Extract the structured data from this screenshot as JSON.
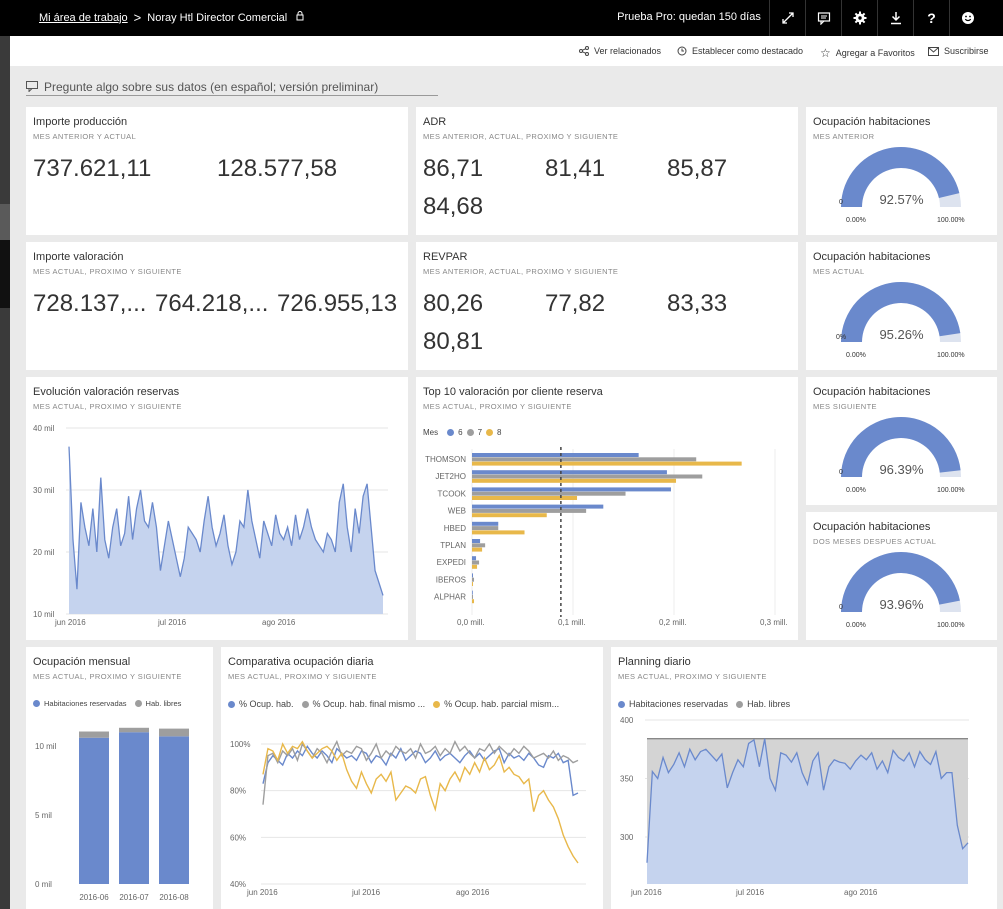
{
  "topbar": {
    "workspace": "Mi área de trabajo",
    "separator": ">",
    "dashboard": "Noray Htl Director Comercial",
    "trial": "Prueba Pro: quedan 150 días",
    "icons": [
      "expand-icon",
      "comment-icon",
      "gear-icon",
      "download-icon",
      "help-icon",
      "smiley-icon"
    ]
  },
  "actions": {
    "related": "Ver relacionados",
    "featured": "Establecer como destacado",
    "favorites": "Agregar a Favoritos",
    "subscribe": "Suscribirse"
  },
  "qa": {
    "placeholder": "Pregunte algo sobre sus datos (en español; versión preliminar)"
  },
  "colors": {
    "blue": "#6a89cc",
    "gray": "#9e9e9e",
    "yellow": "#e8b84a",
    "area": "#c5d3ee",
    "gauge_bg": "#dde3ef"
  },
  "tiles": {
    "produccion": {
      "title": "Importe producción",
      "subtitle": "MES ANTERIOR Y ACTUAL",
      "values": [
        "737.621,11",
        "128.577,58"
      ]
    },
    "adr": {
      "title": "ADR",
      "subtitle": "MES ANTERIOR, ACTUAL, PROXIMO Y SIGUIENTE",
      "values": [
        "86,71",
        "81,41",
        "85,87",
        "84,68"
      ]
    },
    "valoracion": {
      "title": "Importe valoración",
      "subtitle": "MES ACTUAL, PROXIMO Y SIGUIENTE",
      "values": [
        "728.137,...",
        "764.218,...",
        "726.955,13"
      ]
    },
    "revpar": {
      "title": "REVPAR",
      "subtitle": "MES ANTERIOR, ACTUAL, PROXIMO Y SIGUIENTE",
      "values": [
        "80,26",
        "77,82",
        "83,33",
        "80,81"
      ]
    },
    "gauges": [
      {
        "title": "Ocupación habitaciones",
        "subtitle": "MES ANTERIOR",
        "value": 0.9257,
        "label": "92.57%",
        "min": "0.00%",
        "max": "100.00%",
        "zero": "0"
      },
      {
        "title": "Ocupación habitaciones",
        "subtitle": "MES ACTUAL",
        "value": 0.9526,
        "label": "95.26%",
        "min": "0.00%",
        "max": "100.00%",
        "zero": "0%"
      },
      {
        "title": "Ocupación habitaciones",
        "subtitle": "MES SIGUIENTE",
        "value": 0.9639,
        "label": "96.39%",
        "min": "0.00%",
        "max": "100.00%",
        "zero": "0"
      },
      {
        "title": "Ocupación habitaciones",
        "subtitle": "DOS MESES DESPUES ACTUAL",
        "value": 0.9396,
        "label": "93.96%",
        "min": "0.00%",
        "max": "100.00%",
        "zero": "0"
      }
    ],
    "evolucion": {
      "title": "Evolución valoración reservas",
      "subtitle": "MES ACTUAL, PROXIMO Y SIGUIENTE"
    },
    "top10": {
      "title": "Top 10 valoración por cliente reserva",
      "subtitle": "MES ACTUAL, PROXIMO Y SIGUIENTE",
      "legend_title": "Mes"
    },
    "mensual": {
      "title": "Ocupación mensual",
      "subtitle": "MES ACTUAL, PROXIMO Y SIGUIENTE"
    },
    "comparativa": {
      "title": "Comparativa ocupación diaria",
      "subtitle": "MES ACTUAL, PROXIMO Y SIGUIENTE"
    },
    "planning": {
      "title": "Planning diario",
      "subtitle": "MES ACTUAL, PROXIMO Y SIGUIENTE"
    }
  },
  "chart_data": [
    {
      "id": "evolucion",
      "type": "area",
      "yticks": [
        "40 mil",
        "30 mil",
        "20 mil",
        "10 mil"
      ],
      "ylim": [
        10000,
        40000
      ],
      "xticks": [
        "jun 2016",
        "jul 2016",
        "ago 2016"
      ],
      "values": [
        37,
        22,
        14,
        28,
        24,
        21,
        27,
        20,
        32,
        22,
        19,
        24,
        27,
        21,
        23,
        29,
        22,
        27,
        30,
        25,
        24,
        28,
        24,
        17,
        21,
        25,
        22,
        19,
        16,
        19,
        24,
        23,
        22,
        20,
        25,
        29,
        24,
        21,
        23,
        26,
        21,
        18,
        20,
        25,
        24,
        30,
        25,
        22,
        19,
        25,
        23,
        21,
        26,
        23,
        22,
        24,
        21,
        26,
        22,
        24,
        27,
        24,
        22,
        21,
        20,
        23,
        22,
        20,
        28,
        31,
        24,
        20,
        27,
        23,
        29,
        31,
        24,
        17,
        15,
        13
      ]
    },
    {
      "id": "top10",
      "type": "bar",
      "orientation": "horizontal",
      "categories": [
        "THOMSON",
        "JET2HO",
        "TCOOK",
        "WEB",
        "HBED",
        "TPLAN",
        "EXPEDI",
        "IBEROS",
        "ALPHAR"
      ],
      "series": [
        {
          "name": "6",
          "values": [
            0.165,
            0.193,
            0.197,
            0.13,
            0.026,
            0.008,
            0.004,
            0.001,
            0.0
          ]
        },
        {
          "name": "7",
          "values": [
            0.222,
            0.228,
            0.152,
            0.113,
            0.026,
            0.013,
            0.007,
            0.002,
            0.001
          ]
        },
        {
          "name": "8",
          "values": [
            0.267,
            0.202,
            0.104,
            0.074,
            0.052,
            0.01,
            0.005,
            0.001,
            0.002
          ]
        }
      ],
      "xticks": [
        "0,0 mill.",
        "0,1 mill.",
        "0,2 mill.",
        "0,3 mill."
      ],
      "xlim": [
        0,
        0.3
      ],
      "reference_line": 0.088
    },
    {
      "id": "mensual",
      "type": "bar",
      "stacked": true,
      "categories": [
        "2016-06",
        "2016-07",
        "2016-08"
      ],
      "series": [
        {
          "name": "Habitaciones reservadas",
          "values": [
            10600,
            11000,
            10700
          ]
        },
        {
          "name": "Hab. libres",
          "values": [
            450,
            320,
            560
          ]
        }
      ],
      "yticks": [
        "10 mil",
        "5 mil",
        "0 mil"
      ],
      "ylim": [
        0,
        12000
      ]
    },
    {
      "id": "comparativa",
      "type": "line",
      "yticks": [
        "100%",
        "80%",
        "60%",
        "40%"
      ],
      "ylim": [
        40,
        105
      ],
      "xticks": [
        "jun 2016",
        "jul 2016",
        "ago 2016"
      ],
      "series": [
        {
          "name": "% Ocup. hab.",
          "values": [
            83,
            92,
            95,
            93,
            91,
            96,
            94,
            97,
            95,
            99,
            96,
            94,
            97,
            95,
            92,
            98,
            96,
            94,
            95,
            93,
            97,
            96,
            92,
            95,
            94,
            91,
            96,
            94,
            98,
            93,
            95,
            97,
            96,
            92,
            94,
            97,
            93,
            95,
            96,
            94,
            92,
            95,
            97,
            94,
            96,
            93,
            95,
            97,
            98,
            92,
            96,
            94,
            95,
            93,
            96,
            94,
            91,
            90,
            95,
            94,
            96,
            92,
            93,
            78,
            79
          ]
        },
        {
          "name": "% Ocup. hab. final mismo ...",
          "values": [
            74,
            95,
            96,
            92,
            97,
            95,
            98,
            93,
            100,
            97,
            94,
            98,
            96,
            92,
            97,
            101,
            95,
            97,
            96,
            99,
            98,
            93,
            96,
            100,
            94,
            97,
            95,
            99,
            97,
            96,
            98,
            94,
            100,
            96,
            97,
            99,
            95,
            98,
            96,
            101,
            97,
            99,
            96,
            94,
            98,
            97,
            100,
            96,
            99,
            97,
            95,
            98,
            96,
            99,
            97,
            94,
            95,
            96,
            94,
            97,
            93,
            95,
            94,
            92,
            93
          ]
        },
        {
          "name": "% Ocup. hab. parcial mism...",
          "values": [
            87,
            98,
            97,
            93,
            100,
            96,
            99,
            98,
            101,
            97,
            94,
            96,
            98,
            99,
            97,
            93,
            96,
            89,
            84,
            81,
            88,
            83,
            79,
            85,
            87,
            84,
            88,
            76,
            79,
            82,
            81,
            79,
            85,
            86,
            78,
            72,
            83,
            80,
            85,
            88,
            84,
            90,
            87,
            92,
            88,
            94,
            89,
            91,
            95,
            88,
            90,
            87,
            86,
            83,
            85,
            71,
            78,
            80,
            76,
            73,
            68,
            61,
            56,
            52,
            49
          ]
        }
      ]
    },
    {
      "id": "planning",
      "type": "area",
      "yticks": [
        "400",
        "350",
        "300"
      ],
      "ylim": [
        270,
        400
      ],
      "xticks": [
        "jun 2016",
        "jul 2016",
        "ago 2016"
      ],
      "series": [
        {
          "name": "Habitaciones reservadas",
          "values": [
            278,
            356,
            350,
            368,
            355,
            362,
            372,
            360,
            375,
            366,
            373,
            375,
            370,
            365,
            371,
            342,
            355,
            366,
            360,
            380,
            383,
            360,
            384,
            350,
            340,
            372,
            370,
            364,
            372,
            355,
            345,
            365,
            372,
            340,
            360,
            366,
            364,
            363,
            358,
            365,
            370,
            366,
            372,
            358,
            365,
            355,
            374,
            368,
            365,
            372,
            360,
            373,
            366,
            362,
            373,
            350,
            355,
            355,
            310,
            290,
            295
          ]
        },
        {
          "name": "Hab. libres",
          "values": [
            384,
            384,
            384,
            384,
            384,
            384,
            384,
            384,
            384,
            384,
            384,
            384,
            384,
            384,
            384,
            384,
            384,
            384,
            384,
            384,
            384,
            384,
            384,
            384,
            384,
            384,
            384,
            384,
            384,
            384,
            384,
            384,
            384,
            384,
            384,
            384,
            384,
            384,
            384,
            384,
            384,
            384,
            384,
            384,
            384,
            384,
            384,
            384,
            384,
            384,
            384,
            384,
            384,
            384,
            384,
            384,
            384,
            384,
            384,
            384,
            384
          ]
        }
      ]
    }
  ]
}
